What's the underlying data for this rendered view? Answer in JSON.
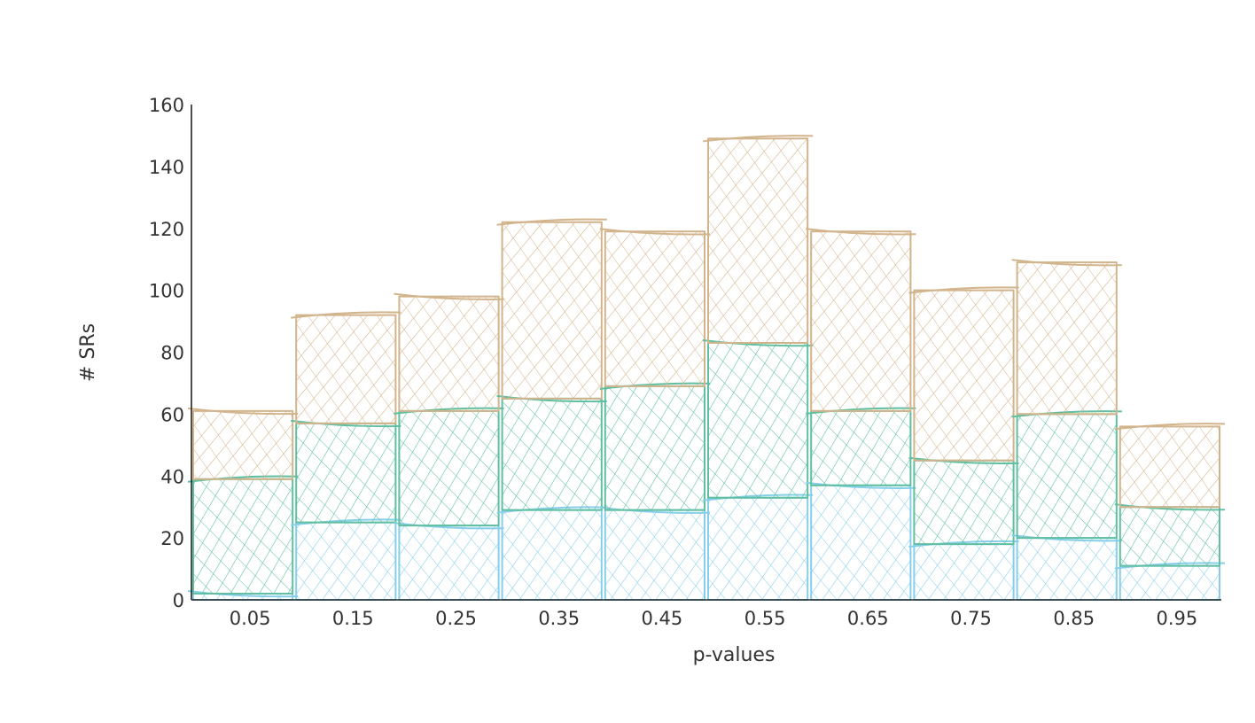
{
  "chart_data": {
    "type": "bar",
    "stacked": true,
    "categories": [
      "0.05",
      "0.15",
      "0.25",
      "0.35",
      "0.45",
      "0.55",
      "0.65",
      "0.75",
      "0.85",
      "0.95"
    ],
    "series": [
      {
        "color": "#87ceeb",
        "values": [
          2,
          25,
          24,
          29,
          29,
          33,
          37,
          18,
          20,
          11
        ]
      },
      {
        "color": "#5fbfa0",
        "values": [
          37,
          32,
          37,
          36,
          40,
          50,
          24,
          27,
          40,
          19
        ]
      },
      {
        "color": "#d2b48c",
        "values": [
          22,
          35,
          37,
          57,
          50,
          66,
          58,
          55,
          49,
          26
        ]
      }
    ],
    "xlabel": "p-values",
    "ylabel": "# SRs",
    "ylim": [
      0,
      160
    ],
    "yticks": [
      0,
      20,
      40,
      60,
      80,
      100,
      120,
      140,
      160
    ],
    "grid": false,
    "legend": "none",
    "style": "hand-drawn cross-hatch"
  }
}
